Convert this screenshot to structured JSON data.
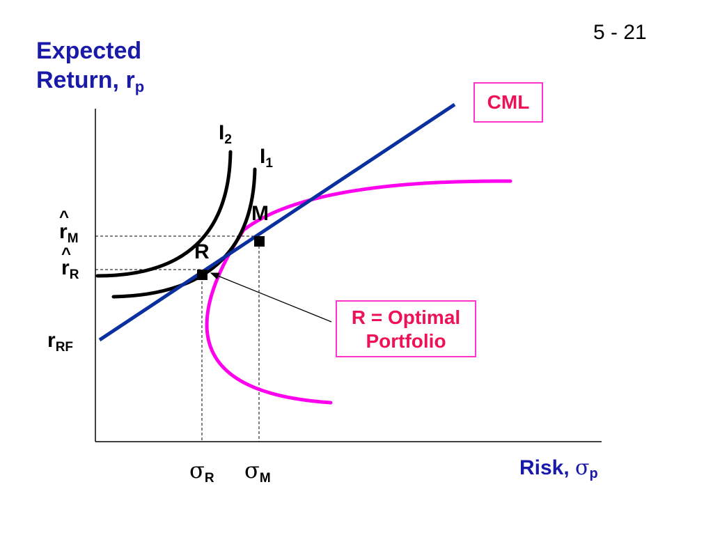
{
  "page_number": "5 - 21",
  "axes": {
    "y_label_line1": "Expected",
    "y_label_line2": "Return, r",
    "y_label_sub": "p",
    "x_label": "Risk, ",
    "x_label_symbol": "σ",
    "x_label_sub": "p"
  },
  "labels": {
    "cml": "CML",
    "optimal_line1": "R = Optimal",
    "optimal_line2": "Portfolio",
    "i2_main": "I",
    "i2_sub": "2",
    "i1_main": "I",
    "i1_sub": "1",
    "m_point": "M",
    "r_point": "R",
    "rm_main": "r",
    "rm_sub": "M",
    "rr_main": "r",
    "rr_sub": "R",
    "rrf_main": "r",
    "rrf_sub": "RF",
    "hat": "^",
    "sigma_symbol": "σ",
    "sigma_r_sub": "R",
    "sigma_m_sub": "M"
  },
  "colors": {
    "cml_line": "#0a2f9e",
    "frontier": "#ff00ee",
    "indifference": "#000000",
    "axis_label": "#1a1aa8",
    "box_text": "#ee1155",
    "box_border": "#ff33cc"
  }
}
